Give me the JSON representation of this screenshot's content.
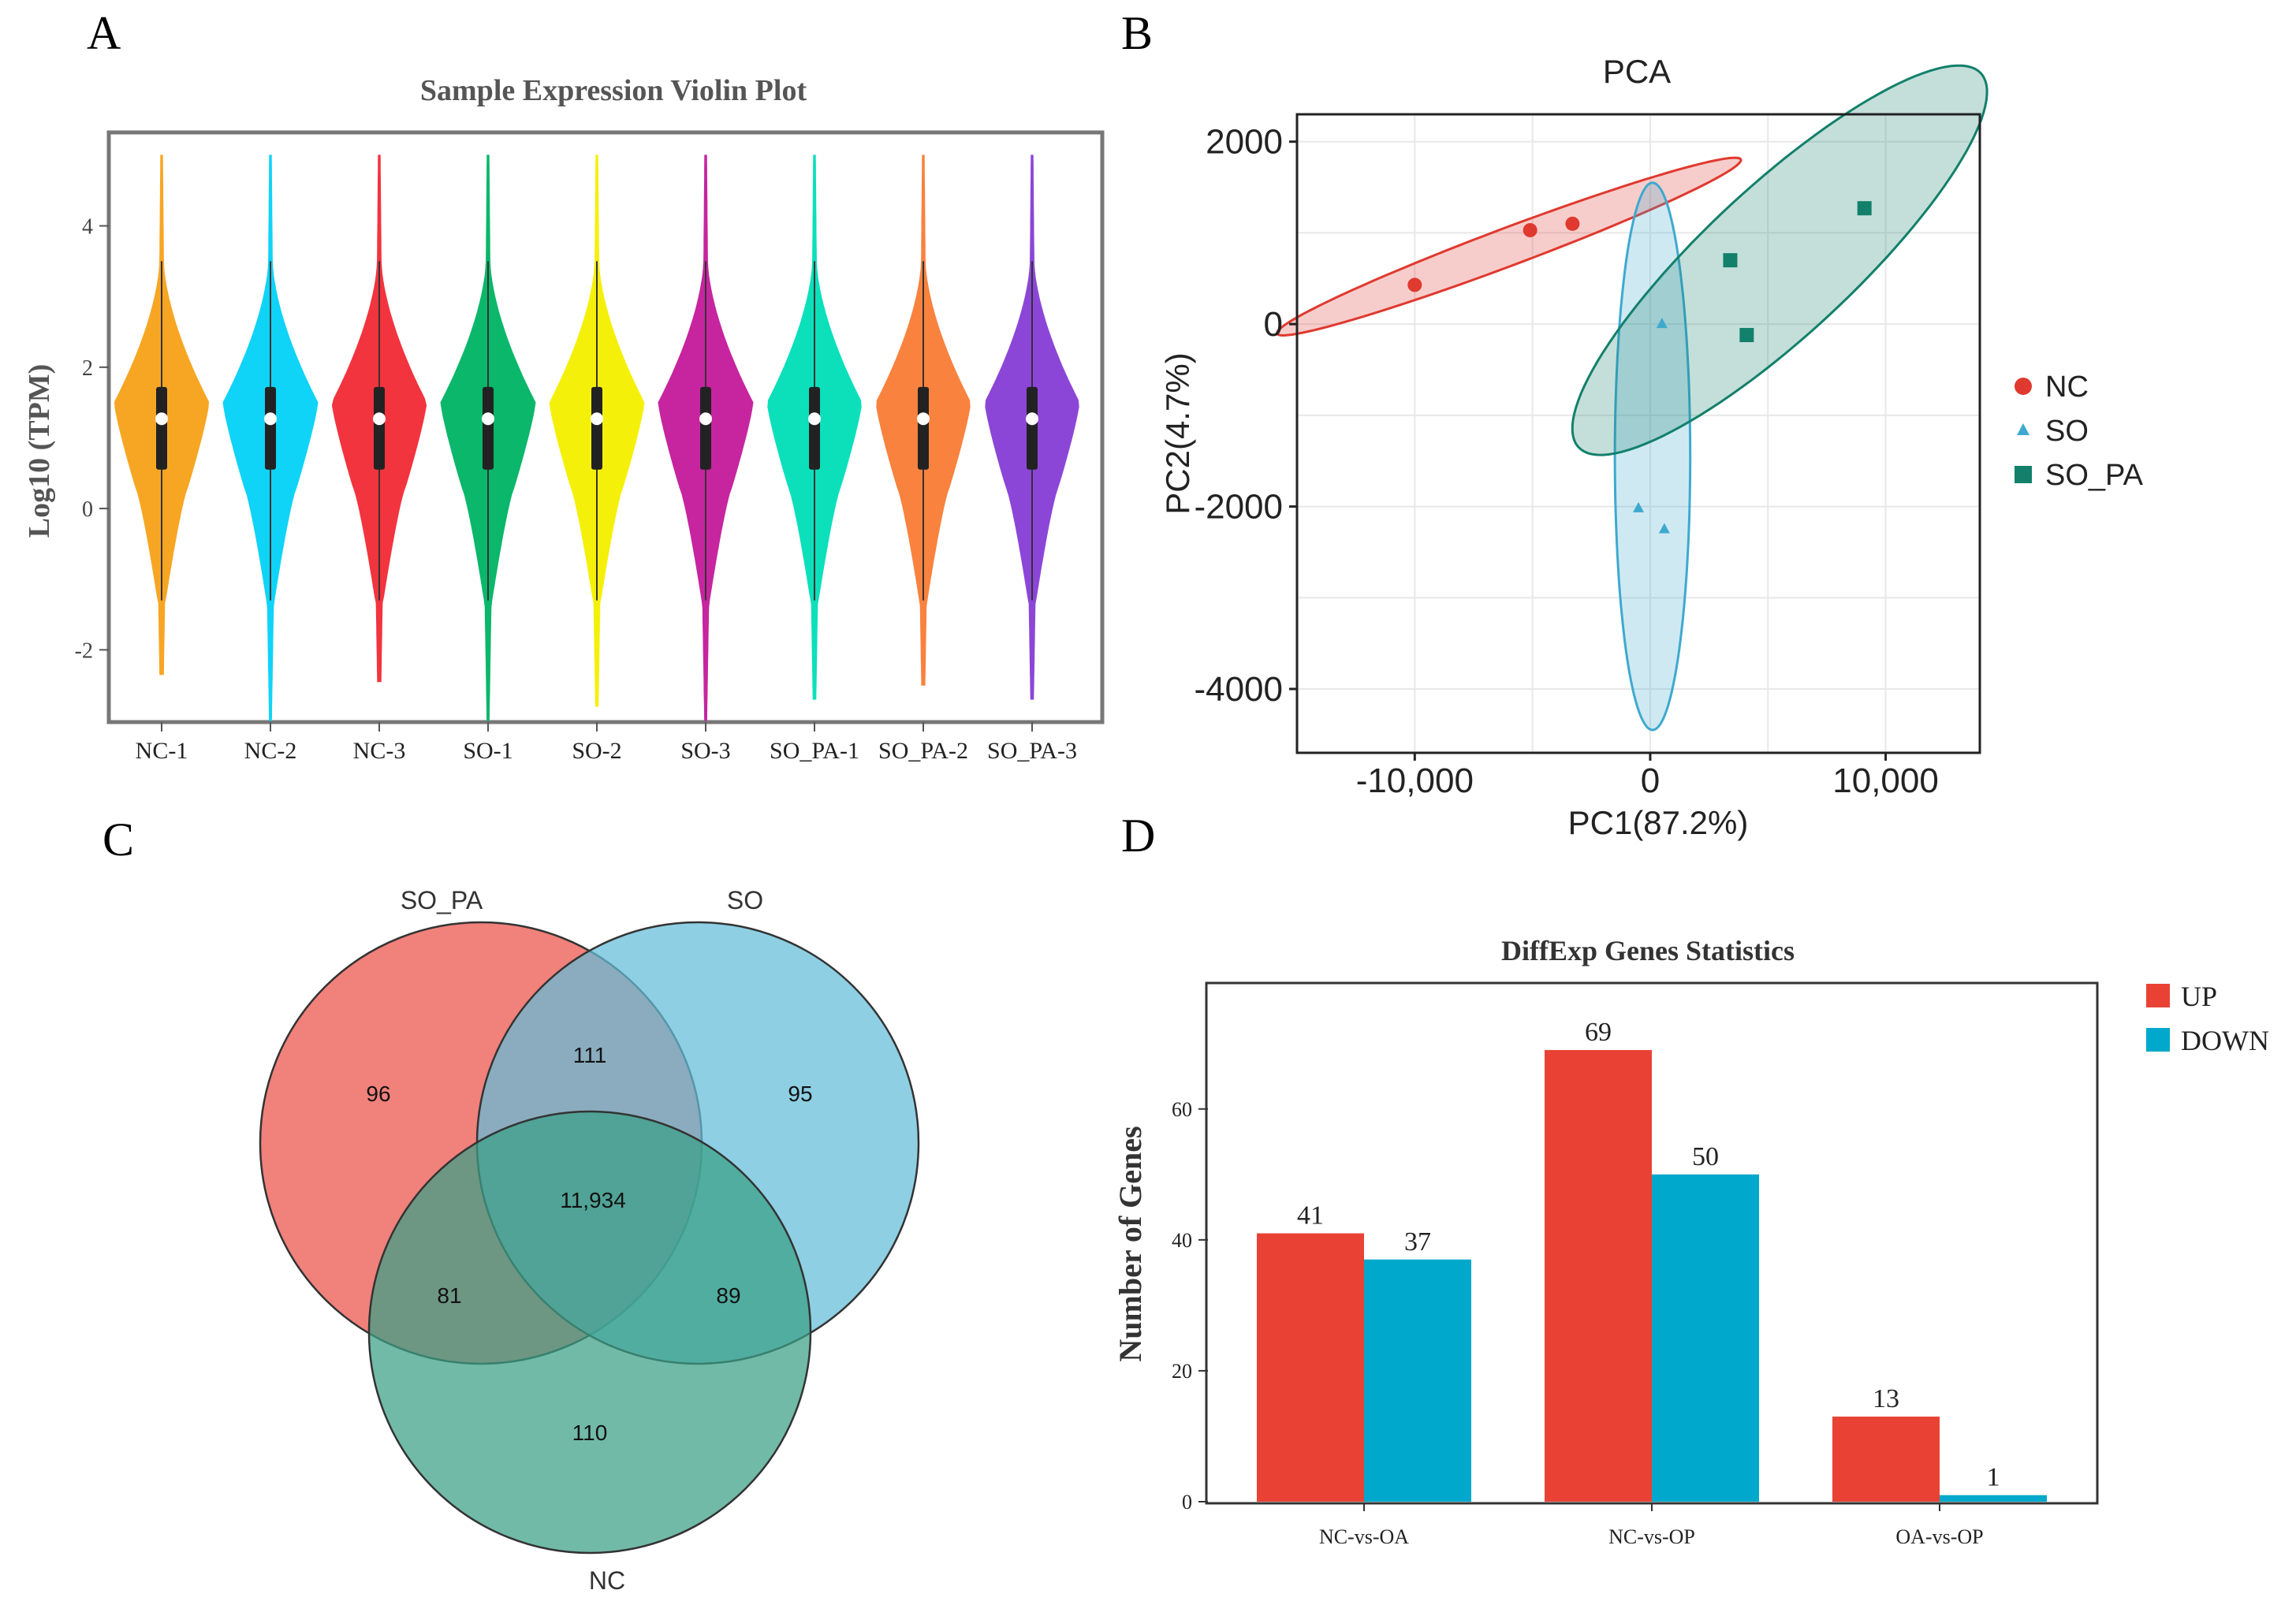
{
  "panel_labels": [
    "A",
    "B",
    "C",
    "D"
  ],
  "chart_data": [
    {
      "panel": "A",
      "type": "violin",
      "title": "Sample Expression Violin Plot",
      "xlabel": "",
      "ylabel": "Log10 (TPM)",
      "ylim": [
        -3,
        5.3
      ],
      "yticks": [
        -2,
        0,
        2,
        4
      ],
      "ytick_labels": [
        "-2",
        "0",
        "2",
        "4"
      ],
      "categories": [
        "NC-1",
        "NC-2",
        "NC-3",
        "SO-1",
        "SO-2",
        "SO-3",
        "SO_PA-1",
        "SO_PA-2",
        "SO_PA-3"
      ],
      "colors": [
        "#F7A624",
        "#10D3F8",
        "#F2343F",
        "#0BB76A",
        "#F5F00A",
        "#C6259F",
        "#0BE0BB",
        "#F9823F",
        "#8C46D7"
      ],
      "median": [
        1.27,
        1.27,
        1.27,
        1.27,
        1.27,
        1.27,
        1.27,
        1.27,
        1.27
      ],
      "q1": [
        0.55,
        0.55,
        0.55,
        0.55,
        0.55,
        0.55,
        0.55,
        0.55,
        0.55
      ],
      "q3": [
        1.72,
        1.72,
        1.72,
        1.72,
        1.72,
        1.72,
        1.72,
        1.72,
        1.72
      ],
      "min": [
        -2.35,
        -3.0,
        -2.45,
        -3.0,
        -2.8,
        -3.0,
        -2.7,
        -2.5,
        -2.7
      ],
      "max": [
        5,
        5,
        5,
        5,
        5,
        5,
        5,
        5,
        5
      ]
    },
    {
      "panel": "B",
      "type": "scatter",
      "title": "PCA",
      "xlabel": "PC1(87.2%)",
      "ylabel": "PC2(4.7%)",
      "xlim": [
        -15000,
        14000
      ],
      "ylim": [
        -4700,
        2300
      ],
      "xticks": [
        -10000,
        0,
        10000
      ],
      "xtick_labels": [
        "-10,000",
        "0",
        "10,000"
      ],
      "yticks": [
        -4000,
        -2000,
        0,
        2000
      ],
      "ytick_labels": [
        "-4000",
        "-2000",
        "0",
        "2000"
      ],
      "grid": true,
      "legend_position": "right",
      "series": [
        {
          "name": "NC",
          "marker": "circle",
          "color": "#E0392F",
          "points": [
            [
              -10000,
              430
            ],
            [
              -5100,
              1030
            ],
            [
              -3300,
              1100
            ]
          ],
          "ellipse": {
            "center": [
              -6000,
              850
            ],
            "radius_x": 9900,
            "radius_y": 220,
            "angle_deg": 5.5
          }
        },
        {
          "name": "SO",
          "marker": "triangle",
          "color": "#3EA9CF",
          "points": [
            [
              500,
              0
            ],
            [
              -500,
              -2020
            ],
            [
              600,
              -2250
            ]
          ],
          "ellipse": {
            "center": [
              100,
              -1450
            ],
            "radius_x": 3000,
            "radius_y": 1600,
            "angle_deg": 90
          }
        },
        {
          "name": "SO_PA",
          "marker": "square",
          "color": "#12806A",
          "points": [
            [
              3400,
              700
            ],
            [
              4100,
              -120
            ],
            [
              9100,
              1270
            ]
          ],
          "ellipse": {
            "center": [
              5500,
              700
            ],
            "radius_x": 9000,
            "radius_y": 1050,
            "angle_deg": 12
          }
        }
      ]
    },
    {
      "panel": "C",
      "type": "venn",
      "sets": [
        {
          "name": "SO_PA",
          "color": "#EF6B64"
        },
        {
          "name": "SO",
          "color": "#63BDD8"
        },
        {
          "name": "NC",
          "color": "#3A9F86"
        }
      ],
      "regions": {
        "SO_PA_only": "96",
        "SO_only": "95",
        "NC_only": "110",
        "SO_PA_and_SO": "111",
        "SO_PA_and_NC": "81",
        "SO_and_NC": "89",
        "all_three": "11,934"
      }
    },
    {
      "panel": "D",
      "type": "bar",
      "title": "DiffExp Genes Statistics",
      "xlabel": "",
      "ylabel": "Number of Genes",
      "ylim": [
        0,
        79
      ],
      "yticks": [
        0,
        20,
        40,
        60
      ],
      "ytick_labels": [
        "0",
        "20",
        "40",
        "60"
      ],
      "categories": [
        "NC-vs-OA",
        "NC-vs-OP",
        "OA-vs-OP"
      ],
      "legend_position": "top-right",
      "series": [
        {
          "name": "UP",
          "color": "#E94235",
          "values": [
            41,
            69,
            13
          ]
        },
        {
          "name": "DOWN",
          "color": "#00A9CB",
          "values": [
            37,
            50,
            1
          ]
        }
      ]
    }
  ]
}
